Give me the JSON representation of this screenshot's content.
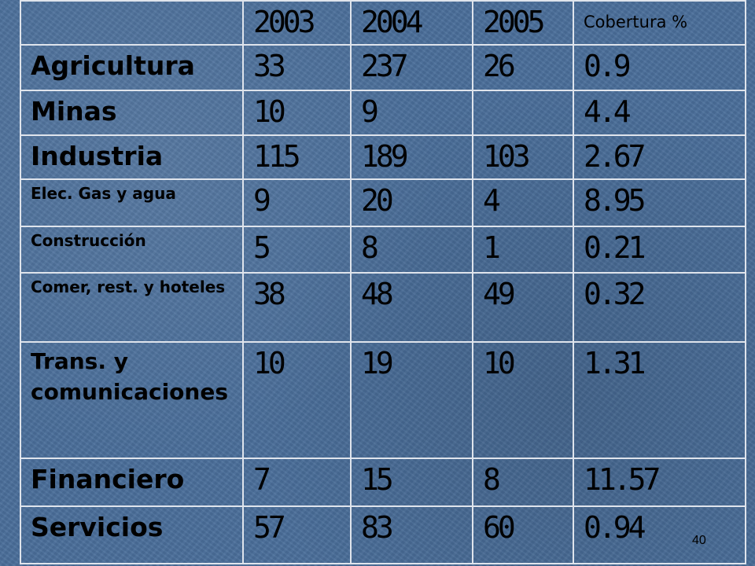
{
  "table": {
    "header": [
      "",
      "2003",
      "2004",
      "2005",
      "Cobertura %"
    ],
    "rows": [
      {
        "sector": "Agricultura",
        "v2003": "33",
        "v2004": "237",
        "v2005": "26",
        "cobertura": "0.9"
      },
      {
        "sector": "Minas",
        "v2003": "10",
        "v2004": "9",
        "v2005": "",
        "cobertura": "4.4"
      },
      {
        "sector": "Industria",
        "v2003": "115",
        "v2004": "189",
        "v2005": "103",
        "cobertura": "2.67"
      },
      {
        "sector": "Elec. Gas y agua",
        "v2003": "9",
        "v2004": "20",
        "v2005": "4",
        "cobertura": "8.95"
      },
      {
        "sector": "Construcción",
        "v2003": "5",
        "v2004": "8",
        "v2005": "1",
        "cobertura": "0.21"
      },
      {
        "sector": "Comer, rest. y hoteles",
        "v2003": "38",
        "v2004": "48",
        "v2005": "49",
        "cobertura": "0.32"
      },
      {
        "sector": "Trans. y comunicaciones",
        "v2003": "10",
        "v2004": "19",
        "v2005": "10",
        "cobertura": "1.31"
      },
      {
        "sector": "Financiero",
        "v2003": "7",
        "v2004": "15",
        "v2005": "8",
        "cobertura": "11.57"
      },
      {
        "sector": "Servicios",
        "v2003": "57",
        "v2004": "83",
        "v2005": "60",
        "cobertura": "0.94"
      }
    ]
  },
  "slide_number": "40"
}
